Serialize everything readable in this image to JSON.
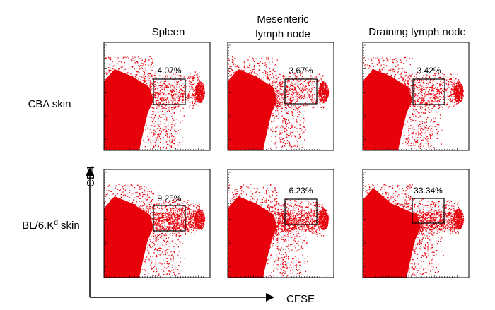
{
  "columns": [
    "Spleen",
    [
      "Mesenteric",
      "lymph node"
    ],
    "Draining lymph node"
  ],
  "rows": [
    {
      "label": {
        "base": "CBA skin"
      },
      "gates": [
        "4.07%",
        "3.67%",
        "3.42%"
      ]
    },
    {
      "label": {
        "base": "BL/6.K",
        "superscript": "d",
        "suffix": " skin"
      },
      "gates": [
        "9.25%",
        "6.23%",
        "33.34%"
      ]
    }
  ],
  "axes": {
    "y": "CD4",
    "x": "CFSE"
  }
}
